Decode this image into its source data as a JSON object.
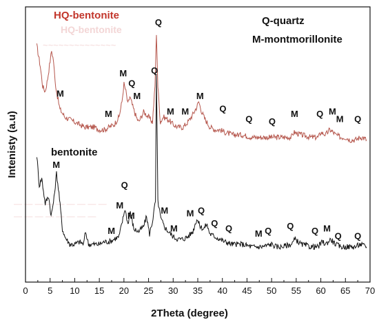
{
  "chart_data": {
    "type": "line",
    "xlabel": "2Theta (degree)",
    "ylabel": "Intenisty (a.u)",
    "xlim": [
      0,
      70
    ],
    "x_ticks": [
      0,
      5,
      10,
      15,
      20,
      25,
      30,
      35,
      40,
      45,
      50,
      55,
      60,
      65,
      70
    ],
    "ylim": [
      0,
      100
    ],
    "y_ticks": false,
    "grid": false,
    "legend": [
      {
        "symbol": "Q",
        "label": "Q-quartz"
      },
      {
        "symbol": "M",
        "label": "M-montmorillonite"
      }
    ],
    "series": [
      {
        "name": "HQ-bentonite",
        "color": "#b5564c",
        "label_color": "#c2352a",
        "x": [
          2.3,
          3,
          3.5,
          4,
          4.5,
          5,
          5.3,
          5.7,
          6,
          6.5,
          7,
          8,
          9,
          10,
          11,
          12,
          13,
          14,
          15,
          16,
          17,
          18,
          19,
          19.6,
          20,
          20.4,
          20.8,
          21.2,
          21.8,
          22.5,
          23,
          24,
          25,
          25.8,
          26.3,
          26.6,
          26.9,
          27.4,
          28,
          29,
          30,
          31,
          32,
          33,
          34,
          34.8,
          35.2,
          35.8,
          36.5,
          37.5,
          38.5,
          39.5,
          40.5,
          42,
          44,
          46,
          48,
          50,
          52,
          54,
          54.5,
          56,
          58,
          59.5,
          60,
          61,
          61.8,
          62.5,
          63,
          64,
          65,
          66,
          67,
          68,
          68.5,
          69.3
        ],
        "y": [
          88,
          80,
          72,
          70,
          75,
          82,
          86,
          82,
          74,
          68,
          63,
          60,
          59,
          58,
          57,
          56,
          56,
          56,
          55,
          55,
          56,
          57,
          60,
          66,
          73,
          70,
          65,
          68,
          64,
          60,
          58,
          62,
          60,
          58,
          72,
          93,
          72,
          58,
          60,
          59,
          57,
          56,
          56,
          58,
          61,
          64,
          66,
          62,
          59,
          56,
          55,
          55,
          54,
          53,
          53,
          52,
          52,
          52,
          52,
          52,
          54,
          53,
          52,
          52,
          54,
          53,
          55,
          54,
          53,
          52,
          52,
          51,
          51,
          52,
          52,
          51
        ],
        "peak_labels": [
          {
            "x": 6.3,
            "y": 68,
            "text": "M"
          },
          {
            "x": 16.1,
            "y": 60,
            "text": "M"
          },
          {
            "x": 19.1,
            "y": 76,
            "text": "M"
          },
          {
            "x": 20.9,
            "y": 72,
            "text": "Q"
          },
          {
            "x": 21.9,
            "y": 67,
            "text": "M"
          },
          {
            "x": 26.3,
            "y": 96,
            "text": "Q"
          },
          {
            "x": 28.7,
            "y": 61,
            "text": "M"
          },
          {
            "x": 31.7,
            "y": 61,
            "text": "M"
          },
          {
            "x": 34.7,
            "y": 67,
            "text": "M"
          },
          {
            "x": 39.4,
            "y": 62,
            "text": "Q"
          },
          {
            "x": 44.7,
            "y": 58,
            "text": "Q"
          },
          {
            "x": 49.4,
            "y": 57,
            "text": "Q"
          },
          {
            "x": 53.9,
            "y": 60,
            "text": "M"
          },
          {
            "x": 59.1,
            "y": 60,
            "text": "Q"
          },
          {
            "x": 61.6,
            "y": 61,
            "text": "M"
          },
          {
            "x": 63.1,
            "y": 58,
            "text": "M"
          },
          {
            "x": 66.8,
            "y": 58,
            "text": "Q"
          }
        ]
      },
      {
        "name": "bentonite",
        "color": "#111111",
        "label_color": "#111111",
        "x": [
          2.3,
          2.8,
          3.3,
          4,
          4.7,
          5.2,
          5.8,
          6.3,
          6.8,
          7.5,
          8,
          9,
          10,
          11,
          11.8,
          12.2,
          12.8,
          14,
          15,
          16,
          17,
          18,
          19,
          19.8,
          20.2,
          20.8,
          21.3,
          22,
          23,
          24,
          24.6,
          25.2,
          25.8,
          26.4,
          26.6,
          26.9,
          27.5,
          28.2,
          29,
          30,
          31,
          32,
          33,
          34,
          34.8,
          35.5,
          36.2,
          36.8,
          37.5,
          38.5,
          39.5,
          40.5,
          42,
          44,
          46,
          48,
          50,
          51,
          52,
          54,
          54.8,
          56,
          58,
          59.5,
          60.3,
          61,
          62,
          63,
          64,
          65,
          66,
          67,
          68,
          69.3
        ],
        "y": [
          45,
          33,
          36,
          26,
          29,
          21,
          28,
          38,
          30,
          16,
          13,
          10,
          10,
          11,
          10,
          15,
          10,
          10,
          10,
          11,
          11,
          12,
          13,
          20,
          24,
          18,
          23,
          16,
          15,
          17,
          21,
          14,
          19,
          27,
          76,
          27,
          20,
          17,
          15,
          13,
          12,
          12,
          13,
          15,
          20,
          17,
          16,
          18,
          14,
          13,
          12,
          11,
          10,
          10,
          9,
          9,
          10,
          9,
          9,
          10,
          12,
          10,
          9,
          9,
          11,
          10,
          12,
          10,
          9,
          9,
          9,
          9,
          10,
          9
        ],
        "peak_labels": [
          {
            "x": 5.5,
            "y": 40,
            "text": "M"
          },
          {
            "x": 16.7,
            "y": 14,
            "text": "M"
          },
          {
            "x": 18.4,
            "y": 24,
            "text": "M"
          },
          {
            "x": 19.4,
            "y": 32,
            "text": "Q"
          },
          {
            "x": 20.7,
            "y": 20,
            "text": "M"
          },
          {
            "x": 25.5,
            "y": 77,
            "text": "Q"
          },
          {
            "x": 27.5,
            "y": 22,
            "text": "M"
          },
          {
            "x": 29.4,
            "y": 15,
            "text": "M"
          },
          {
            "x": 32.7,
            "y": 21,
            "text": "M"
          },
          {
            "x": 35,
            "y": 22,
            "text": "Q"
          },
          {
            "x": 37.7,
            "y": 17,
            "text": "Q"
          },
          {
            "x": 40.6,
            "y": 15,
            "text": "Q"
          },
          {
            "x": 46.6,
            "y": 13,
            "text": "M"
          },
          {
            "x": 48.6,
            "y": 14,
            "text": "Q"
          },
          {
            "x": 53.1,
            "y": 16,
            "text": "Q"
          },
          {
            "x": 58.1,
            "y": 14,
            "text": "Q"
          },
          {
            "x": 60.5,
            "y": 15,
            "text": "M"
          },
          {
            "x": 62.8,
            "y": 12,
            "text": "Q"
          },
          {
            "x": 66.8,
            "y": 12,
            "text": "Q"
          }
        ]
      }
    ]
  }
}
